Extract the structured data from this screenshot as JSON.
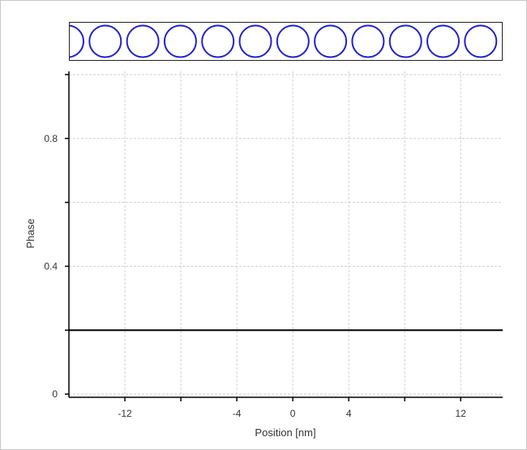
{
  "lattice": {
    "atom_color": "#2222cc",
    "atom_count_visible": 12
  },
  "chart_data": {
    "type": "line",
    "xlabel": "Position [nm]",
    "ylabel": "Phase",
    "xlim": [
      -16,
      15
    ],
    "ylim": [
      -0.01,
      1.01
    ],
    "x_ticks": [
      -12,
      -8,
      -4,
      0,
      4,
      8,
      12
    ],
    "x_tick_labels": [
      "-12",
      "",
      "-4",
      "0",
      "4",
      "",
      "12"
    ],
    "y_ticks": [
      0,
      0.2,
      0.4,
      0.6,
      0.8,
      1.0
    ],
    "y_tick_labels": [
      "0",
      "",
      "0.4",
      "",
      "0.8",
      ""
    ],
    "grid": true,
    "series": [
      {
        "x": [
          -16,
          15
        ],
        "y": [
          0.2,
          0.2
        ],
        "color": "#000000"
      }
    ]
  }
}
